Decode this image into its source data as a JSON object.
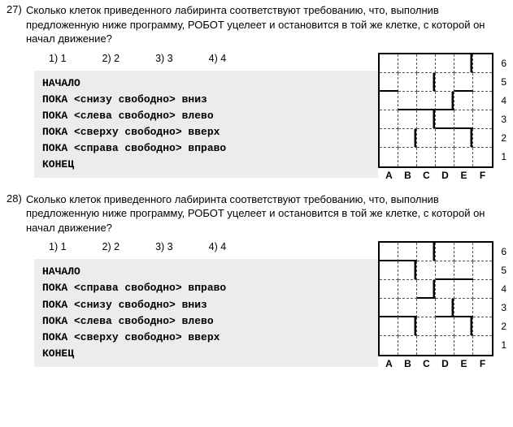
{
  "problems": [
    {
      "num": "27)",
      "text": "Сколько клеток приведенного лабиринта соответствуют требованию, что, выполнив предложенную ниже программу, РОБОТ уцелеет и остановится в той же клетке, с которой он начал движение?",
      "answers": [
        "1) 1",
        "2) 2",
        "3) 3",
        "4) 4"
      ],
      "code": [
        "НАЧАЛО",
        "ПОКА <снизу свободно> вниз",
        "ПОКА <слева свободно> влево",
        "ПОКА <сверху свободно> вверх",
        "ПОКА <справа свободно> вправо",
        "КОНЕЦ"
      ],
      "grid": {
        "cols": [
          "A",
          "B",
          "C",
          "D",
          "E",
          "F"
        ],
        "rows": [
          "6",
          "5",
          "4",
          "3",
          "2",
          "1"
        ],
        "walls": [
          {
            "r": 0,
            "c": 4,
            "side": "r"
          },
          {
            "r": 1,
            "c": 0,
            "side": "b"
          },
          {
            "r": 1,
            "c": 2,
            "side": "r"
          },
          {
            "r": 1,
            "c": 4,
            "side": "b"
          },
          {
            "r": 2,
            "c": 1,
            "side": "b"
          },
          {
            "r": 2,
            "c": 2,
            "side": "b"
          },
          {
            "r": 2,
            "c": 3,
            "side": "r"
          },
          {
            "r": 2,
            "c": 3,
            "side": "b"
          },
          {
            "r": 3,
            "c": 2,
            "side": "r"
          },
          {
            "r": 3,
            "c": 3,
            "side": "b"
          },
          {
            "r": 3,
            "c": 4,
            "side": "b"
          },
          {
            "r": 4,
            "c": 1,
            "side": "r"
          },
          {
            "r": 4,
            "c": 4,
            "side": "r"
          }
        ]
      }
    },
    {
      "num": "28)",
      "text": "Сколько клеток приведенного лабиринта соответствуют требованию, что, выполнив предложенную ниже программу, РОБОТ уцелеет и остановится в той же клетке, с которой он начал движение?",
      "answers": [
        "1) 1",
        "2) 2",
        "3) 3",
        "4) 4"
      ],
      "code": [
        "НАЧАЛО",
        "ПОКА <справа свободно> вправо",
        "ПОКА <снизу свободно> вниз",
        "ПОКА <слева свободно> влево",
        "ПОКА <сверху свободно> вверх",
        "КОНЕЦ"
      ],
      "grid": {
        "cols": [
          "A",
          "B",
          "C",
          "D",
          "E",
          "F"
        ],
        "rows": [
          "6",
          "5",
          "4",
          "3",
          "2",
          "1"
        ],
        "walls": [
          {
            "r": 0,
            "c": 0,
            "side": "b"
          },
          {
            "r": 0,
            "c": 1,
            "side": "b"
          },
          {
            "r": 0,
            "c": 2,
            "side": "r"
          },
          {
            "r": 1,
            "c": 1,
            "side": "r"
          },
          {
            "r": 1,
            "c": 3,
            "side": "b"
          },
          {
            "r": 1,
            "c": 4,
            "side": "b"
          },
          {
            "r": 2,
            "c": 2,
            "side": "b"
          },
          {
            "r": 2,
            "c": 2,
            "side": "r"
          },
          {
            "r": 3,
            "c": 0,
            "side": "b"
          },
          {
            "r": 3,
            "c": 1,
            "side": "b"
          },
          {
            "r": 3,
            "c": 3,
            "side": "r"
          },
          {
            "r": 3,
            "c": 3,
            "side": "b"
          },
          {
            "r": 3,
            "c": 4,
            "side": "b"
          },
          {
            "r": 4,
            "c": 1,
            "side": "r"
          },
          {
            "r": 4,
            "c": 4,
            "side": "r"
          }
        ]
      }
    }
  ]
}
